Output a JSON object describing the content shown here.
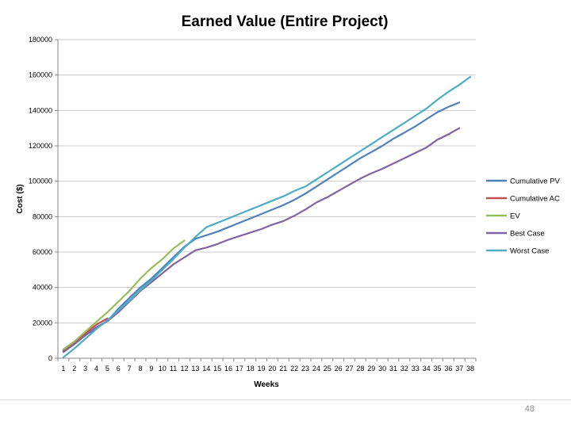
{
  "slide": {
    "page_number": "48"
  },
  "chart_data": {
    "type": "line",
    "title": "Earned Value (Entire Project)",
    "xlabel": "Weeks",
    "ylabel": "Cost ($)",
    "ylim": [
      0,
      180000
    ],
    "yticks": [
      0,
      20000,
      40000,
      60000,
      80000,
      100000,
      120000,
      140000,
      160000,
      180000
    ],
    "categories": [
      "1",
      "2",
      "3",
      "4",
      "5",
      "6",
      "7",
      "8",
      "9",
      "10",
      "11",
      "12",
      "13",
      "14",
      "15",
      "16",
      "17",
      "18",
      "19",
      "20",
      "21",
      "22",
      "23",
      "24",
      "25",
      "26",
      "27",
      "28",
      "29",
      "30",
      "31",
      "32",
      "33",
      "34",
      "35",
      "36",
      "37",
      "38"
    ],
    "grid": true,
    "legend_position": "right",
    "series": [
      {
        "name": "Cumulative PV",
        "color": "#4f81bd",
        "x": [
          1,
          2,
          3,
          4,
          5,
          6,
          7,
          8,
          9,
          10,
          11,
          12,
          13,
          14,
          15,
          16,
          17,
          18,
          19,
          20,
          21,
          22,
          23,
          24,
          25,
          26,
          27,
          28,
          29,
          30,
          31,
          32,
          33,
          34,
          35,
          36,
          37
        ],
        "values": [
          4000,
          8000,
          13000,
          17000,
          21000,
          28000,
          34000,
          40000,
          45000,
          51000,
          57000,
          63000,
          67500,
          69500,
          71500,
          74000,
          76500,
          79000,
          81500,
          84000,
          86500,
          89500,
          93000,
          97000,
          101000,
          105000,
          109000,
          113000,
          116500,
          120000,
          124000,
          127500,
          131000,
          135000,
          139000,
          142000,
          144500
        ]
      },
      {
        "name": "Cumulative AC",
        "color": "#c0504d",
        "x": [
          1,
          2,
          3,
          4,
          5
        ],
        "values": [
          4500,
          8500,
          14000,
          19000,
          22500
        ]
      },
      {
        "name": "EV",
        "color": "#9bbb59",
        "x": [
          1,
          2,
          3,
          4,
          5,
          6,
          7,
          8,
          9,
          10,
          11,
          12
        ],
        "values": [
          5000,
          9500,
          15000,
          20500,
          26000,
          32000,
          38000,
          45000,
          51000,
          56000,
          62000,
          66500
        ]
      },
      {
        "name": "Best Case",
        "color": "#8064a2",
        "x": [
          1,
          2,
          3,
          4,
          5,
          6,
          7,
          8,
          9,
          10,
          11,
          12,
          13,
          14,
          15,
          16,
          17,
          18,
          19,
          20,
          21,
          22,
          23,
          24,
          25,
          26,
          27,
          28,
          29,
          30,
          31,
          32,
          33,
          34,
          35,
          36,
          37
        ],
        "values": [
          3500,
          8000,
          13000,
          17500,
          21000,
          26000,
          32000,
          38000,
          43000,
          48000,
          53000,
          57000,
          61000,
          62500,
          64500,
          67000,
          69000,
          71000,
          73000,
          75500,
          77500,
          80500,
          84000,
          88000,
          91000,
          94500,
          98000,
          101500,
          104500,
          107000,
          110000,
          113000,
          116000,
          119000,
          123500,
          126500,
          130000
        ]
      },
      {
        "name": "Worst Case",
        "color": "#4bacc6",
        "x": [
          1,
          2,
          3,
          4,
          5,
          6,
          7,
          8,
          9,
          10,
          11,
          12,
          13,
          14,
          15,
          16,
          17,
          18,
          19,
          20,
          21,
          22,
          23,
          24,
          25,
          26,
          27,
          28,
          29,
          30,
          31,
          32,
          33,
          34,
          35,
          36,
          37,
          38
        ],
        "values": [
          500,
          5500,
          11000,
          16500,
          21500,
          27000,
          32500,
          38500,
          44000,
          50000,
          56000,
          62500,
          68500,
          74000,
          76500,
          79000,
          81500,
          84000,
          86500,
          89000,
          91500,
          94500,
          97000,
          101000,
          105000,
          109000,
          113000,
          117000,
          121000,
          125000,
          129000,
          133000,
          137000,
          141000,
          146000,
          150500,
          154500,
          159000
        ]
      }
    ]
  }
}
